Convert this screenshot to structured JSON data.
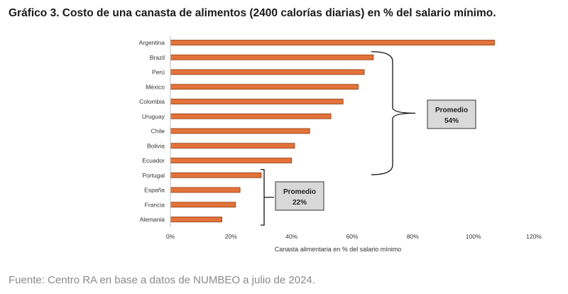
{
  "title": "Gráfico 3. Costo de una canasta de alimentos (2400 calorías diarias) en % del salario mínimo.",
  "source": "Fuente: Centro RA en base a datos de NUMBEO a julio de 2024.",
  "colors": {
    "bar": "#E3733A",
    "bar_edge": "#8A3A12",
    "box_fill": "#D9D9D9",
    "box_edge": "#333333"
  },
  "chart_data": {
    "type": "bar",
    "orientation": "horizontal",
    "categories": [
      "Argentina",
      "Brazil",
      "Perú",
      "México",
      "Colombia",
      "Uruguay",
      "Chile",
      "Bolivia",
      "Ecuador",
      "Portugal",
      "España",
      "Francia",
      "Alemania"
    ],
    "values": [
      107,
      67,
      64,
      62,
      57,
      53,
      46,
      41,
      40,
      30,
      23,
      21.5,
      17
    ],
    "xlabel": "Canasta alimentaria en % del salario mínimo",
    "ylabel": "",
    "xlim": [
      0,
      120
    ],
    "xticks": [
      "0%",
      "20%",
      "40%",
      "60%",
      "80%",
      "100%",
      "120%"
    ],
    "grid": false,
    "annotations": [
      {
        "line1": "Promedio",
        "line2": "54%",
        "from": "Brazil",
        "to": "Ecuador"
      },
      {
        "line1": "Promedio",
        "line2": "22%",
        "from": "Portugal",
        "to": "Alemania"
      }
    ]
  }
}
